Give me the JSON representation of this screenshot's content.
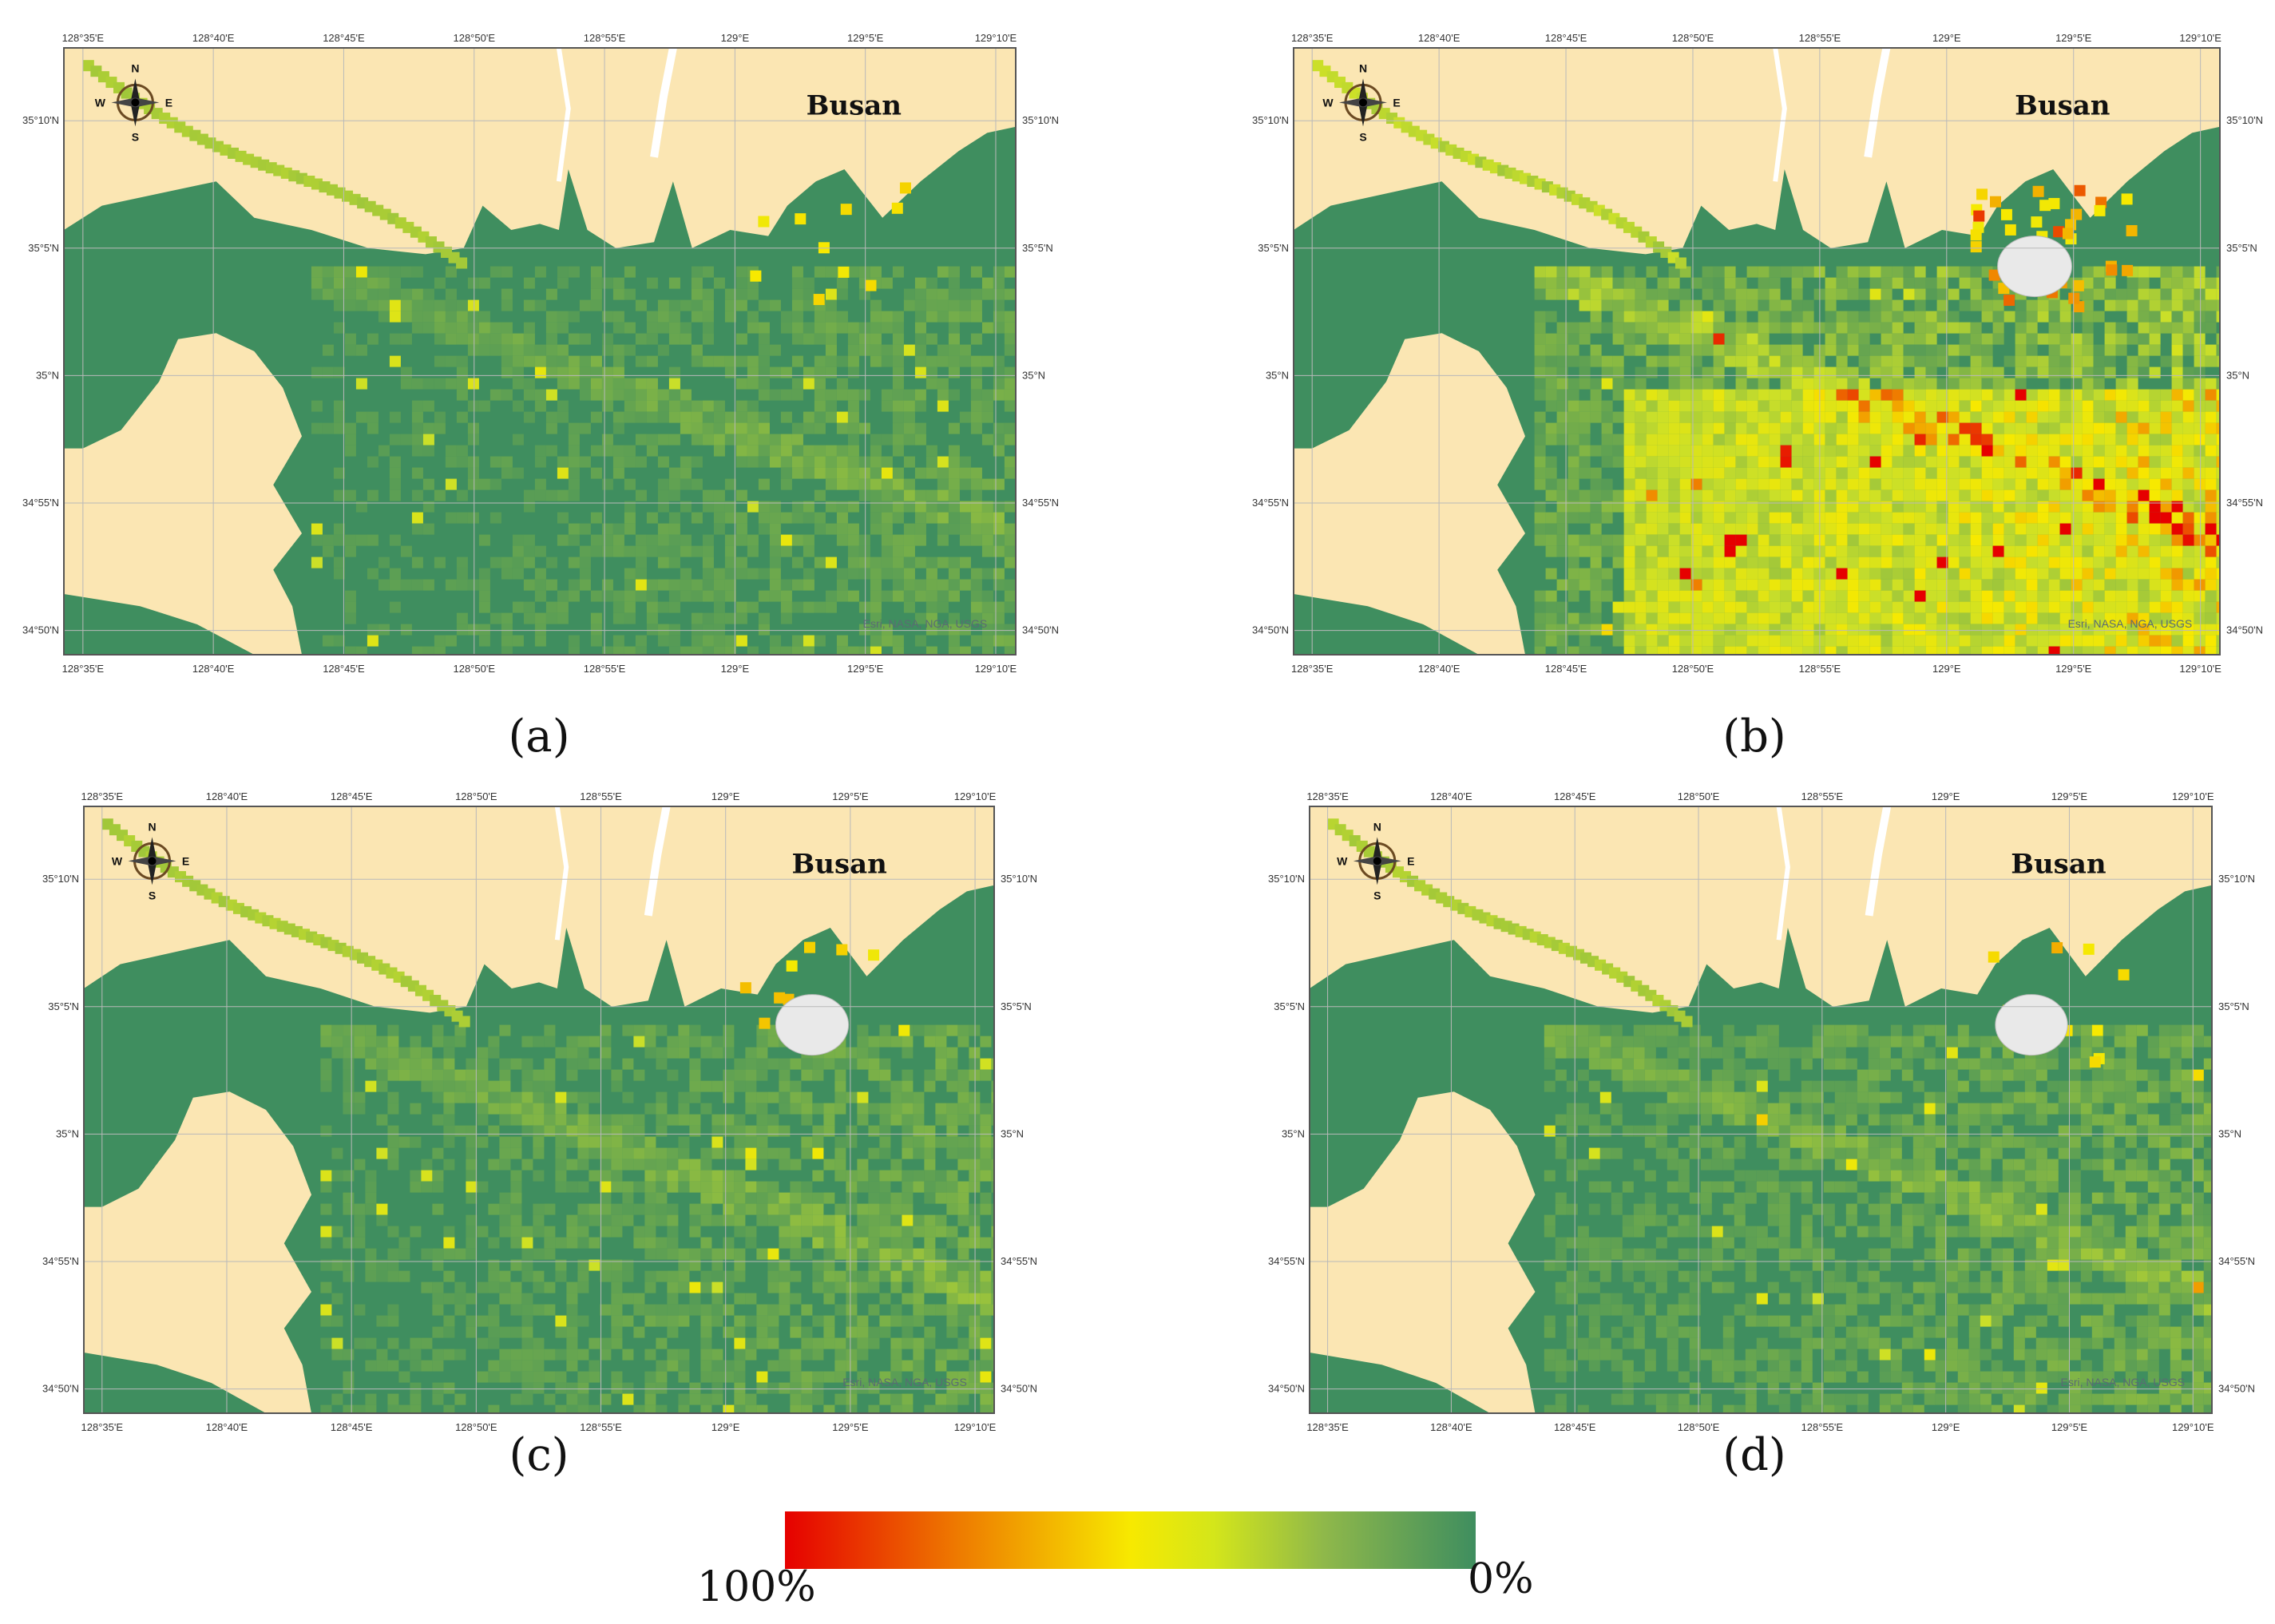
{
  "colors": {
    "land": "#fbe6b3",
    "sea": "#3f8e5f",
    "river": "#ffffff",
    "grid": "#b9b9b9",
    "density_high": "#e60000",
    "density_mid": "#f7e900",
    "density_low": "#3f8e5f"
  },
  "map": {
    "city_label": "Busan",
    "credit": "Esri, NASA, NGA, USGS",
    "compass": {
      "n": "N",
      "s": "S",
      "e": "E",
      "w": "W"
    },
    "lon_ticks": [
      "128°35'E",
      "128°40'E",
      "128°45'E",
      "128°50'E",
      "128°55'E",
      "129°E",
      "129°5'E",
      "129°10'E"
    ],
    "lat_ticks_left": [
      "35°10'N",
      "35°5'N",
      "35°N",
      "34°55'N",
      "34°50'N"
    ],
    "lat_ticks_right": [
      "35°10'N",
      "35°5'N",
      "35°N",
      "34°55'N",
      "34°50'N"
    ]
  },
  "panels": [
    {
      "id": "a",
      "caption": "(a)",
      "intensity": 0.35,
      "island": false
    },
    {
      "id": "b",
      "caption": "(b)",
      "intensity": 0.85,
      "island": true
    },
    {
      "id": "c",
      "caption": "(c)",
      "intensity": 0.4,
      "island": true
    },
    {
      "id": "d",
      "caption": "(d)",
      "intensity": 0.45,
      "island": true
    }
  ],
  "legend": {
    "min_label": "0%",
    "max_label": "100%"
  }
}
